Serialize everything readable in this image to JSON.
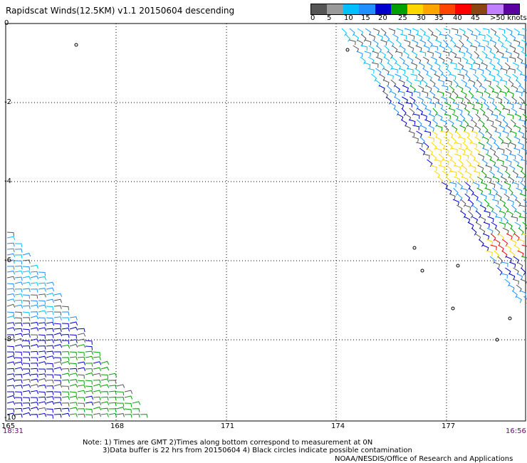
{
  "title": "Rapidscat Winds(12.5KM) v1.1 20150604 descending",
  "legend": {
    "colors": [
      "#555555",
      "#9a9a9a",
      "#00bfff",
      "#1e90ff",
      "#0000cd",
      "#00a000",
      "#ffd700",
      "#ffa500",
      "#ff4500",
      "#ff0000",
      "#8b4513",
      "#c080ff",
      "#5a00a0"
    ],
    "labels": [
      "0",
      "5",
      "10",
      "15",
      "20",
      "25",
      "30",
      "35",
      "40",
      "45",
      ">50 knots"
    ]
  },
  "axes": {
    "lat_labels": [
      "0",
      "-2",
      "-4",
      "-6",
      "-8",
      "-10"
    ],
    "lon_labels": [
      "165",
      "168",
      "171",
      "174",
      "177"
    ]
  },
  "times": {
    "left": "18:31",
    "right": "16:56"
  },
  "notes": {
    "line1": "Note: 1) Times are GMT 2)Times along bottom correspond to measurement at 0N",
    "line2": "3)Data buffer is 22 hrs from 20150604 4) Black circles indicate possible contamination"
  },
  "credit": "NOAA/NESDIS/Office of Research and Applications"
}
